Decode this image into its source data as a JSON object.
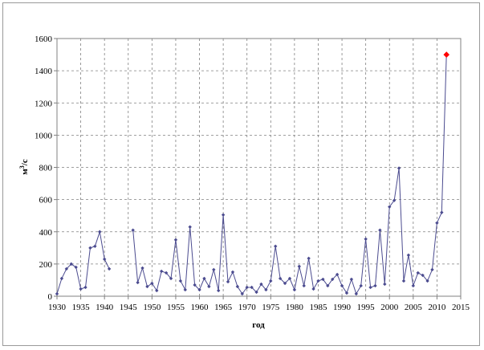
{
  "chart_data": {
    "type": "line",
    "xlabel": "год",
    "ylabel_main": "м",
    "ylabel_sup": "3",
    "ylabel_tail": "/с",
    "xlim": [
      1930,
      2015
    ],
    "ylim": [
      0,
      1600
    ],
    "x_ticks": [
      "1930",
      "1935",
      "1940",
      "1945",
      "1950",
      "1955",
      "1960",
      "1965",
      "1970",
      "1975",
      "1980",
      "1985",
      "1990",
      "1995",
      "2000",
      "2005",
      "2010",
      "2015"
    ],
    "y_ticks": [
      "0",
      "200",
      "400",
      "600",
      "800",
      "1000",
      "1200",
      "1400",
      "1600"
    ],
    "grid": true,
    "series": [
      {
        "color": "#4b4b8f",
        "segments": [
          [
            [
              1930,
              15
            ],
            [
              1931,
              110
            ],
            [
              1932,
              170
            ],
            [
              1933,
              200
            ],
            [
              1934,
              180
            ],
            [
              1935,
              45
            ],
            [
              1936,
              55
            ],
            [
              1937,
              300
            ],
            [
              1938,
              310
            ],
            [
              1939,
              400
            ],
            [
              1940,
              230
            ],
            [
              1941,
              170
            ]
          ],
          [
            [
              1946,
              410
            ],
            [
              1947,
              85
            ],
            [
              1948,
              175
            ],
            [
              1949,
              60
            ],
            [
              1950,
              80
            ],
            [
              1951,
              35
            ],
            [
              1952,
              155
            ],
            [
              1953,
              145
            ],
            [
              1954,
              110
            ],
            [
              1955,
              350
            ],
            [
              1956,
              95
            ],
            [
              1957,
              40
            ],
            [
              1958,
              430
            ],
            [
              1959,
              70
            ],
            [
              1960,
              40
            ],
            [
              1961,
              110
            ],
            [
              1962,
              60
            ],
            [
              1963,
              165
            ],
            [
              1964,
              35
            ],
            [
              1965,
              505
            ],
            [
              1966,
              90
            ],
            [
              1967,
              150
            ],
            [
              1968,
              60
            ],
            [
              1969,
              15
            ],
            [
              1970,
              55
            ],
            [
              1971,
              55
            ],
            [
              1972,
              25
            ],
            [
              1973,
              75
            ],
            [
              1974,
              40
            ],
            [
              1975,
              95
            ],
            [
              1976,
              310
            ],
            [
              1977,
              110
            ],
            [
              1978,
              80
            ],
            [
              1979,
              110
            ],
            [
              1980,
              40
            ],
            [
              1981,
              185
            ],
            [
              1982,
              65
            ],
            [
              1983,
              235
            ],
            [
              1984,
              45
            ],
            [
              1985,
              95
            ],
            [
              1986,
              105
            ],
            [
              1987,
              65
            ],
            [
              1988,
              105
            ],
            [
              1989,
              135
            ],
            [
              1990,
              65
            ],
            [
              1991,
              20
            ],
            [
              1992,
              105
            ],
            [
              1993,
              15
            ],
            [
              1994,
              65
            ],
            [
              1995,
              355
            ],
            [
              1996,
              55
            ],
            [
              1997,
              65
            ],
            [
              1998,
              410
            ],
            [
              1999,
              75
            ],
            [
              2000,
              555
            ],
            [
              2001,
              595
            ],
            [
              2002,
              795
            ],
            [
              2003,
              95
            ],
            [
              2004,
              255
            ],
            [
              2005,
              65
            ],
            [
              2006,
              145
            ],
            [
              2007,
              130
            ],
            [
              2008,
              95
            ],
            [
              2009,
              165
            ],
            [
              2010,
              455
            ],
            [
              2011,
              520
            ],
            [
              2012,
              1500
            ]
          ]
        ]
      }
    ],
    "highlight": {
      "x": 2012,
      "y": 1500,
      "color": "#ff0000"
    }
  }
}
